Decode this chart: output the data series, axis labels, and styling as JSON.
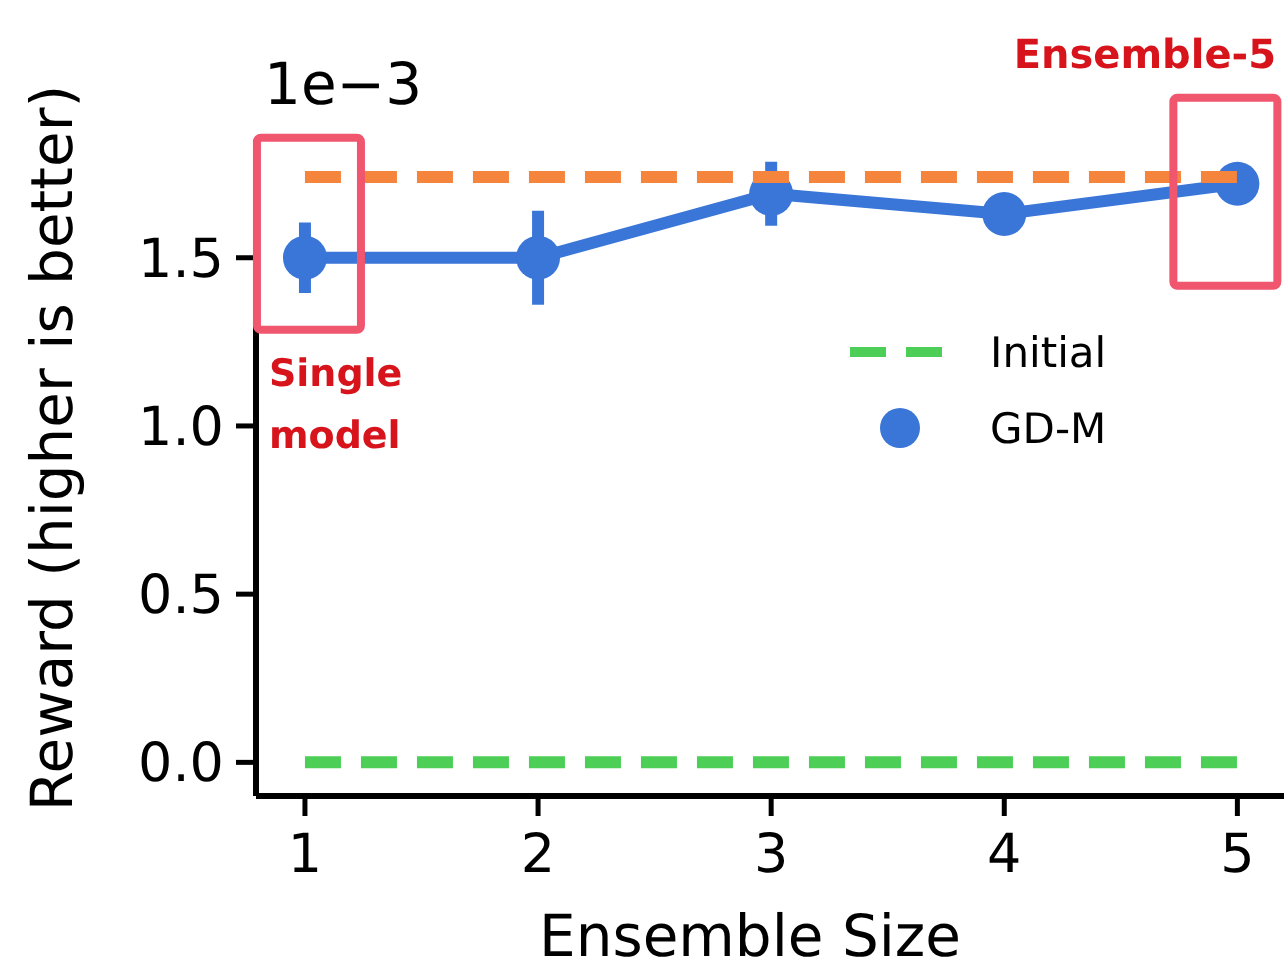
{
  "chart_data": {
    "type": "line",
    "xlabel": "Ensemble Size",
    "ylabel": "Reward (higher is better)",
    "x": [
      1,
      2,
      3,
      4,
      5
    ],
    "series": [
      {
        "name": "Initial",
        "color": "#4dcf57",
        "values": [
          0,
          0,
          0,
          0,
          0
        ],
        "line_style": "dashed",
        "marker": "none"
      },
      {
        "color": "#f5843c",
        "values": [
          1.74,
          1.74,
          1.74,
          1.74,
          1.74
        ],
        "line_style": "dashed",
        "marker": "none"
      },
      {
        "name": "GD-M",
        "color": "#3a76d8",
        "values": [
          1.5,
          1.5,
          1.69,
          1.63,
          1.72
        ],
        "errors": [
          0.105,
          0.14,
          0.095,
          null,
          null
        ],
        "line_style": "solid",
        "marker": "circle"
      }
    ],
    "xlim": [
      0.79,
      5.2
    ],
    "xticks": [
      1,
      2,
      3,
      4,
      5
    ],
    "ylim": [
      -0.1,
      1.85
    ],
    "yticks": [
      {
        "value": 0,
        "label": "0.0"
      },
      {
        "value": 0.5,
        "label": "0.5"
      },
      {
        "value": 1,
        "label": "1.0"
      },
      {
        "value": 1.5,
        "label": "1.5"
      }
    ],
    "legend": "right",
    "grid": false,
    "annotations": [
      "1e−3",
      "Single model",
      "Ensemble-5"
    ]
  }
}
